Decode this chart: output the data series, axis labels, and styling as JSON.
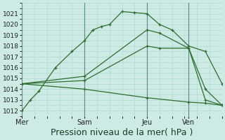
{
  "background_color": "#cdeae5",
  "grid_color": "#aad4cc",
  "line_color": "#2d6e2d",
  "xlabel": "Pression niveau de la mer( hPa )",
  "xlabel_fontsize": 9,
  "ylim": [
    1011.5,
    1021.7
  ],
  "yticks": [
    1012,
    1013,
    1014,
    1015,
    1016,
    1017,
    1018,
    1019,
    1020,
    1021
  ],
  "ytick_fontsize": 6.5,
  "xtick_labels": [
    "Mer",
    "Sam",
    "Jeu",
    "Ven"
  ],
  "xtick_positions": [
    0,
    30,
    60,
    80
  ],
  "xlim": [
    0,
    96
  ],
  "vlines": [
    0,
    30,
    60,
    80
  ],
  "s1_x": [
    0,
    4,
    8,
    16,
    24,
    30,
    34,
    38,
    42,
    48,
    54,
    60,
    66,
    72,
    80,
    88,
    96
  ],
  "s1_y": [
    1012.0,
    1013.0,
    1013.8,
    1016.0,
    1017.5,
    1018.5,
    1019.5,
    1019.8,
    1020.0,
    1021.2,
    1021.1,
    1021.0,
    1020.0,
    1019.5,
    1018.0,
    1017.5,
    1014.5
  ],
  "s2_x": [
    0,
    30,
    60,
    66,
    80,
    88,
    96
  ],
  "s2_y": [
    1014.5,
    1015.2,
    1019.5,
    1019.2,
    1017.8,
    1014.0,
    1012.5
  ],
  "s3_x": [
    0,
    30,
    60,
    66,
    80,
    88,
    96
  ],
  "s3_y": [
    1014.5,
    1014.8,
    1018.0,
    1017.8,
    1017.8,
    1013.0,
    1012.5
  ],
  "s4_x": [
    0,
    30,
    60,
    80,
    88,
    96
  ],
  "s4_y": [
    1014.5,
    1014.0,
    1013.2,
    1012.8,
    1012.7,
    1012.5
  ]
}
